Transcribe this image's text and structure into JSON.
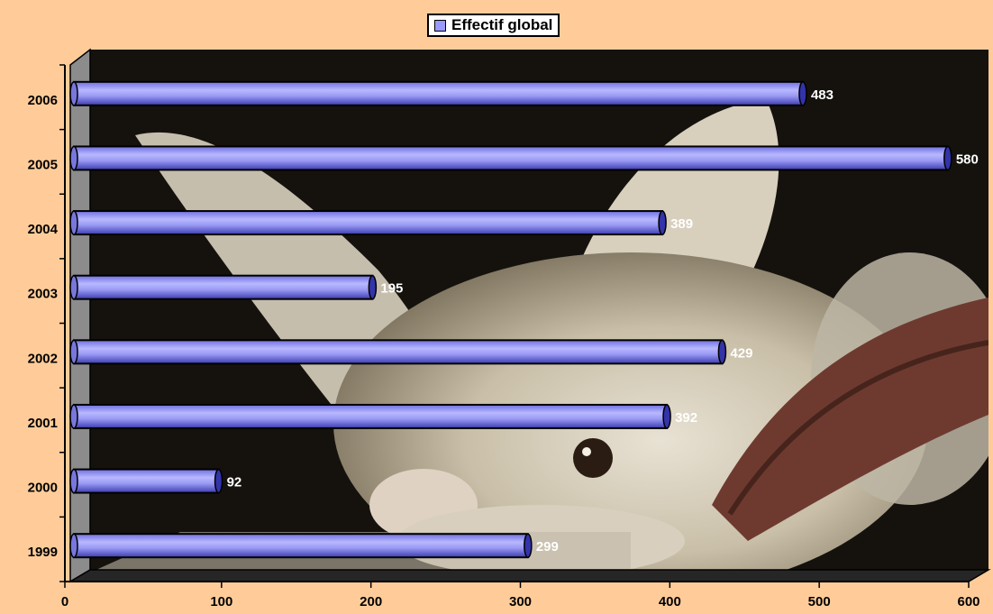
{
  "legend": {
    "label": "Effectif global",
    "color": "#9999ff"
  },
  "background_photo": "bat",
  "chart_data": {
    "type": "bar",
    "orientation": "horizontal",
    "style": "3d-cylinder",
    "categories": [
      "2006",
      "2005",
      "2004",
      "2003",
      "2002",
      "2001",
      "2000",
      "1999"
    ],
    "series": [
      {
        "name": "Effectif global",
        "values": [
          483,
          580,
          389,
          195,
          429,
          392,
          92,
          299
        ]
      }
    ],
    "x_ticks": [
      0,
      100,
      200,
      300,
      400,
      500,
      600
    ],
    "xlim": [
      0,
      600
    ],
    "data_labels": true,
    "legend_position": "top",
    "colors": {
      "bar": "#9999ff",
      "bar_dark": "#3333aa",
      "frame": "#808080",
      "page": "#ffcc99"
    }
  }
}
